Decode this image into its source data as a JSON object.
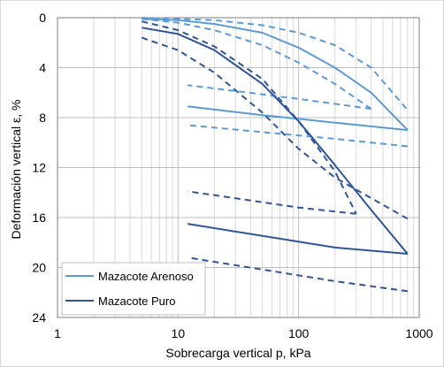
{
  "chart_data": {
    "type": "line",
    "xlabel": "Sobrecarga vertical p, kPa",
    "ylabel": "Deformación vertical ε, %",
    "x_scale": "log",
    "xlim": [
      1,
      1000
    ],
    "ylim": [
      0,
      24
    ],
    "y_inverted": true,
    "x_ticks": [
      "1",
      "10",
      "100",
      "1000"
    ],
    "y_ticks": [
      "0",
      "4",
      "8",
      "12",
      "16",
      "20",
      "24"
    ],
    "grid": true,
    "legend_position": "bottom-left",
    "legend": [
      {
        "label": "Mazacote Arenoso",
        "color": "#5b9bd5"
      },
      {
        "label": "Mazacote Puro",
        "color": "#2f5597"
      }
    ],
    "series": [
      {
        "group": "Mazacote Arenoso",
        "style": "solid",
        "color": "#5b9bd5",
        "x": [
          5,
          10,
          20,
          50,
          100,
          200,
          400,
          800
        ],
        "y": [
          0.1,
          0.2,
          0.5,
          1.2,
          2.4,
          4.0,
          6.0,
          9.0
        ]
      },
      {
        "group": "Mazacote Arenoso",
        "style": "solid",
        "color": "#5b9bd5",
        "x": [
          800,
          400,
          200,
          100,
          50,
          12
        ],
        "y": [
          9.0,
          8.7,
          8.4,
          8.1,
          7.8,
          7.1
        ]
      },
      {
        "group": "Mazacote Arenoso",
        "style": "dashed",
        "color": "#5b9bd5",
        "x": [
          5,
          10,
          20,
          50,
          100,
          200,
          400,
          800
        ],
        "y": [
          0.0,
          0.1,
          0.2,
          0.6,
          1.2,
          2.2,
          4.0,
          7.4
        ]
      },
      {
        "group": "Mazacote Arenoso",
        "style": "dashed",
        "color": "#5b9bd5",
        "x": [
          800,
          200,
          12
        ],
        "y": [
          10.3,
          9.7,
          8.6
        ]
      },
      {
        "group": "Mazacote Arenoso",
        "style": "dashed",
        "color": "#5b9bd5",
        "x": [
          5,
          10,
          20,
          50,
          100,
          200,
          400
        ],
        "y": [
          0.1,
          0.4,
          1.0,
          2.2,
          3.6,
          5.3,
          7.3
        ]
      },
      {
        "group": "Mazacote Arenoso",
        "style": "dashed",
        "color": "#5b9bd5",
        "x": [
          400,
          100,
          12
        ],
        "y": [
          7.3,
          6.5,
          5.4
        ]
      },
      {
        "group": "Mazacote Puro",
        "style": "solid",
        "color": "#2f5597",
        "x": [
          5,
          10,
          20,
          50,
          100,
          200,
          400,
          800
        ],
        "y": [
          0.8,
          1.3,
          2.6,
          5.3,
          8.3,
          11.8,
          15.4,
          18.9
        ]
      },
      {
        "group": "Mazacote Puro",
        "style": "solid",
        "color": "#2f5597",
        "x": [
          800,
          200,
          12
        ],
        "y": [
          18.9,
          18.4,
          16.5
        ]
      },
      {
        "group": "Mazacote Puro",
        "style": "dashed",
        "color": "#2f5597",
        "x": [
          5,
          10,
          20,
          50,
          100,
          200,
          800
        ],
        "y": [
          1.6,
          2.6,
          4.4,
          7.6,
          10.5,
          12.8,
          16.1
        ]
      },
      {
        "group": "Mazacote Puro",
        "style": "dashed",
        "color": "#2f5597",
        "x": [
          800,
          200,
          12
        ],
        "y": [
          21.9,
          21.1,
          19.2
        ]
      },
      {
        "group": "Mazacote Puro",
        "style": "dashed",
        "color": "#2f5597",
        "x": [
          5,
          10,
          20,
          50,
          100,
          200,
          300
        ],
        "y": [
          0.3,
          1.0,
          2.3,
          4.9,
          8.3,
          12.3,
          15.7
        ]
      },
      {
        "group": "Mazacote Puro",
        "style": "dashed",
        "color": "#2f5597",
        "x": [
          300,
          100,
          12
        ],
        "y": [
          15.7,
          15.2,
          13.9
        ]
      }
    ]
  }
}
